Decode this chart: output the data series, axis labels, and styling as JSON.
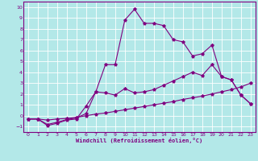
{
  "xlabel": "Windchill (Refroidissement éolien,°C)",
  "xlim": [
    -0.5,
    23.5
  ],
  "ylim": [
    -1.5,
    10.5
  ],
  "xticks": [
    0,
    1,
    2,
    3,
    4,
    5,
    6,
    7,
    8,
    9,
    10,
    11,
    12,
    13,
    14,
    15,
    16,
    17,
    18,
    19,
    20,
    21,
    22,
    23
  ],
  "yticks": [
    -1,
    0,
    1,
    2,
    3,
    4,
    5,
    6,
    7,
    8,
    9,
    10
  ],
  "bg_color": "#b3e8e8",
  "line_color": "#800080",
  "grid_color": "#ffffff",
  "line1_x": [
    0,
    1,
    2,
    3,
    4,
    5,
    6,
    7,
    8,
    9,
    10,
    11,
    12,
    13,
    14,
    15,
    16,
    17,
    18,
    19,
    20,
    21,
    22,
    23
  ],
  "line1_y": [
    -0.3,
    -0.3,
    -0.4,
    -0.3,
    -0.25,
    -0.15,
    0.0,
    0.15,
    0.25,
    0.4,
    0.55,
    0.7,
    0.85,
    1.0,
    1.15,
    1.3,
    1.5,
    1.65,
    1.8,
    2.0,
    2.2,
    2.4,
    2.65,
    3.0
  ],
  "line2_x": [
    0,
    1,
    2,
    3,
    4,
    5,
    6,
    7,
    8,
    9,
    10,
    11,
    12,
    13,
    14,
    15,
    16,
    17,
    18,
    19,
    20,
    21,
    22,
    23
  ],
  "line2_y": [
    -0.3,
    -0.3,
    -0.8,
    -0.6,
    -0.35,
    -0.2,
    0.2,
    2.2,
    2.1,
    1.9,
    2.5,
    2.1,
    2.2,
    2.4,
    2.8,
    3.2,
    3.6,
    4.0,
    3.7,
    4.7,
    3.6,
    3.3,
    1.9,
    1.1
  ],
  "line3_x": [
    0,
    1,
    2,
    3,
    4,
    5,
    6,
    7,
    8,
    9,
    10,
    11,
    12,
    13,
    14,
    15,
    16,
    17,
    18,
    19,
    20,
    21,
    22,
    23
  ],
  "line3_y": [
    -0.3,
    -0.3,
    -0.9,
    -0.7,
    -0.4,
    -0.3,
    0.9,
    2.2,
    4.7,
    4.7,
    8.8,
    9.8,
    8.5,
    8.5,
    8.3,
    7.0,
    6.8,
    5.5,
    5.7,
    6.5,
    3.6,
    3.3,
    1.9,
    1.1
  ]
}
